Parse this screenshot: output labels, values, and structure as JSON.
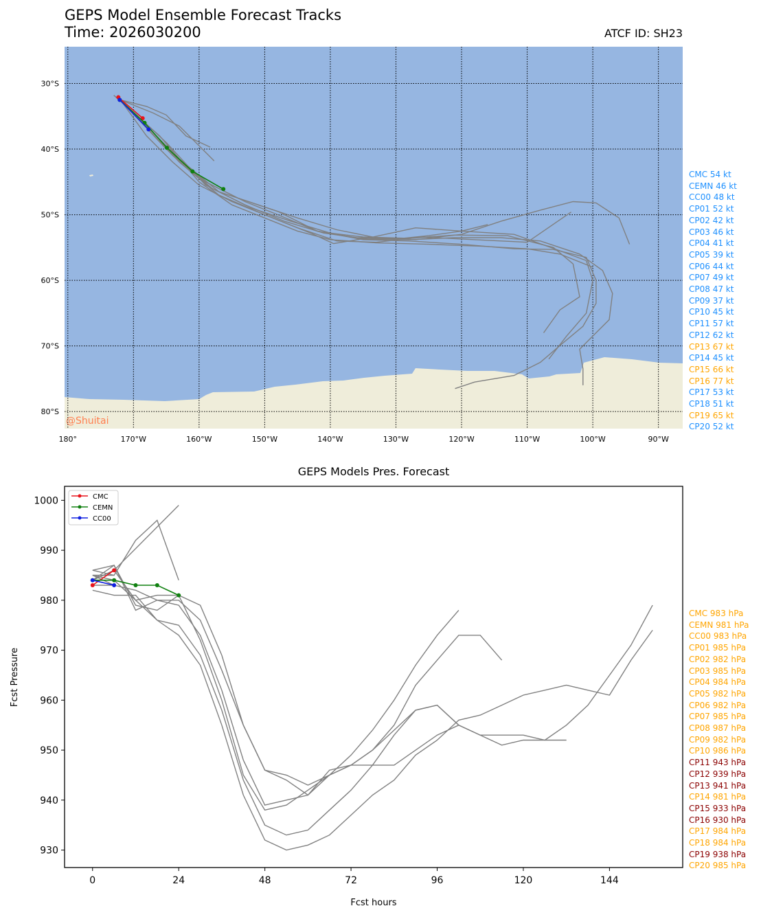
{
  "header": {
    "title": "GEPS Model Ensemble Forecast Tracks",
    "time": "Time: 2026030200",
    "atcf": "ATCF ID: SH23"
  },
  "colors": {
    "ocean": "#96b6e1",
    "land": "#efedda",
    "track_gray": "#808080",
    "cmc": "#e8141c",
    "cemn": "#108010",
    "cc00": "#1020e0",
    "wind_blue": "#1e90ff",
    "wind_orange": "#ffa500",
    "pres_orange": "#ffa500",
    "pres_darkred": "#8b0000",
    "watermark": "#ff7f50"
  },
  "watermark": "@Shuitai",
  "chart_data": [
    {
      "type": "line",
      "subtype": "map-tracks",
      "title": "GEPS Model Ensemble Forecast Tracks",
      "x_ticks": [
        "180°",
        "170°W",
        "160°W",
        "150°W",
        "140°W",
        "130°W",
        "120°W",
        "110°W",
        "100°W",
        "90°W"
      ],
      "x_tick_values": [
        -180,
        -170,
        -160,
        -150,
        -140,
        -130,
        -120,
        -110,
        -100,
        -90
      ],
      "y_ticks": [
        "30°S",
        "40°S",
        "50°S",
        "60°S",
        "70°S",
        "80°S"
      ],
      "y_tick_values": [
        -30,
        -40,
        -50,
        -60,
        -70,
        -80
      ],
      "xlim": [
        -180.5,
        -86.3
      ],
      "ylim": [
        -82.6,
        -24.4
      ],
      "grid": true,
      "series": [
        {
          "name": "CMC",
          "color": "cmc",
          "markers": true,
          "lon": [
            -172.3,
            -168.6
          ],
          "lat": [
            -32.1,
            -35.3
          ]
        },
        {
          "name": "CEMN",
          "color": "cemn",
          "markers": true,
          "lon": [
            -172.1,
            -168.3,
            -164.9,
            -161.0,
            -156.3
          ],
          "lat": [
            -32.5,
            -36.0,
            -39.8,
            -43.4,
            -46.1
          ]
        },
        {
          "name": "CC00",
          "color": "cc00",
          "markers": true,
          "lon": [
            -172.1,
            -167.7
          ],
          "lat": [
            -32.5,
            -37.0
          ]
        },
        {
          "color": "track_gray",
          "lon": [
            -173,
            -166,
            -160,
            -155,
            -150,
            -145,
            -140,
            -133,
            -125,
            -117,
            -110,
            -105,
            -100
          ],
          "lat": [
            -31.8,
            -38,
            -45,
            -48.5,
            -50.5,
            -52.5,
            -53.8,
            -54.3,
            -54.5,
            -54.8,
            -55.2,
            -56,
            -58
          ]
        },
        {
          "color": "track_gray",
          "lon": [
            -172,
            -165,
            -159,
            -153,
            -147,
            -141,
            -136,
            -130,
            -125,
            -120,
            -116
          ],
          "lat": [
            -32.5,
            -39,
            -45.5,
            -48.5,
            -51,
            -52.8,
            -53.5,
            -53.7,
            -53.2,
            -52.5,
            -51.5
          ]
        },
        {
          "color": "track_gray",
          "lon": [
            -172,
            -164,
            -158,
            -152,
            -146,
            -140,
            -135,
            -128,
            -121,
            -113,
            -106,
            -103,
            -102,
            -105,
            -107.5
          ],
          "lat": [
            -32.5,
            -41,
            -46,
            -49,
            -51,
            -52.8,
            -53.4,
            -53.6,
            -53.1,
            -53.2,
            -55,
            -57.5,
            -62.5,
            -64.5,
            -68
          ]
        },
        {
          "color": "track_gray",
          "lon": [
            -172,
            -163,
            -157,
            -150,
            -143,
            -139.5,
            -134,
            -127,
            -120,
            -112,
            -105,
            -101,
            -100,
            -101,
            -104,
            -106.7
          ],
          "lat": [
            -32.5,
            -42,
            -47,
            -50,
            -52.8,
            -54.4,
            -53.5,
            -52,
            -52.5,
            -53,
            -55.5,
            -57,
            -60,
            -65,
            -68.5,
            -72
          ]
        },
        {
          "color": "track_gray",
          "lon": [
            -172,
            -165,
            -159,
            -153,
            -148,
            -142,
            -135,
            -128,
            -120,
            -112,
            -106,
            -101,
            -99.5,
            -99.5,
            -101.5,
            -104.5,
            -108,
            -112,
            -118,
            -121
          ],
          "lat": [
            -32.5,
            -40,
            -45,
            -48,
            -50,
            -52.5,
            -53.8,
            -54,
            -54.5,
            -55.2,
            -55.3,
            -56.5,
            -60,
            -63.5,
            -67,
            -69.5,
            -72.5,
            -74.5,
            -75.5,
            -76.5
          ]
        },
        {
          "color": "track_gray",
          "lon": [
            -172,
            -165,
            -160,
            -154,
            -148,
            -142,
            -135,
            -128,
            -121,
            -114,
            -108,
            -102,
            -98.5,
            -97,
            -97.5,
            -100,
            -102,
            -101.5,
            -101.5
          ],
          "lat": [
            -32.5,
            -40,
            -44.5,
            -47.5,
            -49.5,
            -52.5,
            -53.7,
            -53.8,
            -53.5,
            -53.5,
            -54,
            -56,
            -58.5,
            -62,
            -66,
            -68.5,
            -70.5,
            -73.5,
            -76
          ]
        },
        {
          "color": "track_gray",
          "lon": [
            -172,
            -163,
            -157,
            -151,
            -145,
            -139,
            -133,
            -127,
            -120,
            -114,
            -108,
            -103,
            -99.5,
            -96,
            -94.4
          ],
          "lat": [
            -32.5,
            -41.5,
            -46.5,
            -48.5,
            -50.5,
            -52.3,
            -53.5,
            -53.8,
            -53.0,
            -51,
            -49.3,
            -48.0,
            -48.2,
            -50.5,
            -54.5
          ]
        },
        {
          "color": "track_gray",
          "lon": [
            -172,
            -167,
            -163,
            -160,
            -157.7
          ],
          "lat": [
            -32.5,
            -34.5,
            -36.5,
            -39.5,
            -41.8
          ]
        },
        {
          "color": "track_gray",
          "lon": [
            -172,
            -168,
            -165,
            -162,
            -158.3
          ],
          "lat": [
            -32.5,
            -33.5,
            -34.8,
            -38,
            -39.7
          ]
        },
        {
          "color": "track_gray",
          "lon": [
            -172,
            -168,
            -164,
            -160,
            -155,
            -150,
            -145,
            -139,
            -133,
            -126,
            -118,
            -110,
            -103.3
          ],
          "lat": [
            -32.5,
            -38,
            -42,
            -45.5,
            -48,
            -50,
            -52,
            -54,
            -54.2,
            -53.4,
            -53.8,
            -54.2,
            -49.6
          ]
        }
      ],
      "wind_labels": [
        {
          "text": "CMC 54 kt",
          "color": "wind_blue"
        },
        {
          "text": "CEMN 46 kt",
          "color": "wind_blue"
        },
        {
          "text": "CC00 48 kt",
          "color": "wind_blue"
        },
        {
          "text": "CP01 52 kt",
          "color": "wind_blue"
        },
        {
          "text": "CP02 42 kt",
          "color": "wind_blue"
        },
        {
          "text": "CP03 46 kt",
          "color": "wind_blue"
        },
        {
          "text": "CP04 41 kt",
          "color": "wind_blue"
        },
        {
          "text": "CP05 39 kt",
          "color": "wind_blue"
        },
        {
          "text": "CP06 44 kt",
          "color": "wind_blue"
        },
        {
          "text": "CP07 49 kt",
          "color": "wind_blue"
        },
        {
          "text": "CP08 47 kt",
          "color": "wind_blue"
        },
        {
          "text": "CP09 37 kt",
          "color": "wind_blue"
        },
        {
          "text": "CP10 45 kt",
          "color": "wind_blue"
        },
        {
          "text": "CP11 57 kt",
          "color": "wind_blue"
        },
        {
          "text": "CP12 62 kt",
          "color": "wind_blue"
        },
        {
          "text": "CP13 67 kt",
          "color": "wind_orange"
        },
        {
          "text": "CP14 45 kt",
          "color": "wind_blue"
        },
        {
          "text": "CP15 66 kt",
          "color": "wind_orange"
        },
        {
          "text": "CP16 77 kt",
          "color": "wind_orange"
        },
        {
          "text": "CP17 53 kt",
          "color": "wind_blue"
        },
        {
          "text": "CP18 51 kt",
          "color": "wind_blue"
        },
        {
          "text": "CP19 65 kt",
          "color": "wind_orange"
        },
        {
          "text": "CP20 52 kt",
          "color": "wind_blue"
        }
      ]
    },
    {
      "type": "line",
      "title": "GEPS Models Pres. Forecast",
      "xlabel": "Fcst hours",
      "ylabel": "Fcst Pressure",
      "x_ticks": [
        0,
        24,
        48,
        72,
        96,
        120,
        144
      ],
      "y_ticks": [
        930,
        940,
        950,
        960,
        970,
        980,
        990,
        1000
      ],
      "xlim": [
        -7.8,
        164.4
      ],
      "ylim": [
        926.5,
        1002.8
      ],
      "grid": false,
      "legend": {
        "placement": "top-left",
        "entries": [
          "CMC",
          "CEMN",
          "CC00"
        ]
      },
      "series": [
        {
          "name": "CMC",
          "color": "cmc",
          "markers": true,
          "x": [
            0,
            6
          ],
          "y": [
            983,
            986
          ]
        },
        {
          "name": "CEMN",
          "color": "cemn",
          "markers": true,
          "x": [
            0,
            6,
            12,
            18,
            24
          ],
          "y": [
            984,
            984,
            983,
            983,
            981
          ]
        },
        {
          "name": "CC00",
          "color": "cc00",
          "markers": true,
          "x": [
            0,
            6
          ],
          "y": [
            984,
            983
          ]
        },
        {
          "color": "track_gray",
          "x": [
            0,
            6,
            12,
            18,
            24
          ],
          "y": [
            985,
            985,
            992,
            996,
            984
          ]
        },
        {
          "color": "track_gray",
          "x": [
            0,
            6,
            24
          ],
          "y": [
            984,
            986,
            999
          ]
        },
        {
          "color": "track_gray",
          "x": [
            0,
            6
          ],
          "y": [
            986,
            985
          ]
        },
        {
          "color": "track_gray",
          "x": [
            0,
            6
          ],
          "y": [
            983,
            983
          ]
        },
        {
          "color": "track_gray",
          "x": [
            0,
            6,
            12,
            18,
            24,
            30,
            36,
            42,
            48,
            54,
            60,
            66,
            72,
            78,
            84,
            90,
            96,
            102
          ],
          "y": [
            985,
            983,
            982,
            980,
            980,
            976,
            966,
            955,
            946,
            944,
            941,
            945,
            949,
            954,
            960,
            967,
            973,
            978
          ]
        },
        {
          "color": "track_gray",
          "x": [
            0,
            6,
            12,
            18,
            24,
            30,
            36,
            42,
            48,
            54,
            60,
            66,
            72,
            78,
            84,
            90,
            96,
            102,
            108,
            114
          ],
          "y": [
            984,
            986,
            980,
            981,
            981,
            979,
            969,
            955,
            946,
            945,
            943,
            945,
            947,
            950,
            955,
            963,
            968,
            973,
            973,
            968
          ]
        },
        {
          "color": "track_gray",
          "x": [
            0,
            6,
            12,
            18,
            24,
            30,
            36,
            42,
            48,
            54,
            60,
            66,
            72,
            78,
            84,
            90,
            96,
            102,
            108,
            114,
            120,
            126,
            132
          ],
          "y": [
            984,
            987,
            978,
            980,
            979,
            973,
            962,
            948,
            939,
            940,
            941,
            946,
            947,
            947,
            947,
            950,
            953,
            955,
            953,
            953,
            953,
            952,
            952
          ]
        },
        {
          "color": "track_gray",
          "x": [
            0,
            6,
            12,
            18,
            24,
            30,
            36,
            42,
            48,
            54,
            60,
            66,
            72,
            78,
            84,
            90,
            96,
            102,
            108,
            114,
            120,
            126,
            132,
            138,
            144,
            150,
            156
          ],
          "y": [
            985,
            984,
            980,
            976,
            975,
            969,
            958,
            944,
            935,
            933,
            934,
            938,
            942,
            947,
            953,
            958,
            959,
            955,
            953,
            951,
            952,
            952,
            955,
            959,
            965,
            971,
            979
          ]
        },
        {
          "color": "track_gray",
          "x": [
            0,
            6,
            12,
            18,
            24,
            30,
            36,
            42,
            48,
            54,
            60,
            66,
            72,
            78,
            84,
            90,
            96,
            102,
            108,
            114,
            120,
            126,
            132,
            138,
            144,
            150,
            156
          ],
          "y": [
            982,
            981,
            981,
            976,
            973,
            967,
            955,
            941,
            932,
            930,
            931,
            933,
            937,
            941,
            944,
            949,
            952,
            956,
            957,
            959,
            961,
            962,
            963,
            962,
            961,
            968,
            974
          ]
        },
        {
          "color": "track_gray",
          "x": [
            0,
            6,
            12,
            18,
            24,
            30,
            36,
            42,
            48,
            54,
            60,
            66,
            72,
            78,
            84,
            90,
            96,
            102
          ],
          "y": [
            986,
            987,
            979,
            978,
            981,
            972,
            960,
            945,
            938,
            939,
            942,
            945,
            947,
            950,
            954,
            958,
            959,
            955
          ]
        }
      ],
      "pres_labels": [
        {
          "text": "CMC 983 hPa",
          "color": "pres_orange"
        },
        {
          "text": "CEMN 981 hPa",
          "color": "pres_orange"
        },
        {
          "text": "CC00 983 hPa",
          "color": "pres_orange"
        },
        {
          "text": "CP01 985 hPa",
          "color": "pres_orange"
        },
        {
          "text": "CP02 982 hPa",
          "color": "pres_orange"
        },
        {
          "text": "CP03 985 hPa",
          "color": "pres_orange"
        },
        {
          "text": "CP04 984 hPa",
          "color": "pres_orange"
        },
        {
          "text": "CP05 982 hPa",
          "color": "pres_orange"
        },
        {
          "text": "CP06 982 hPa",
          "color": "pres_orange"
        },
        {
          "text": "CP07 985 hPa",
          "color": "pres_orange"
        },
        {
          "text": "CP08 987 hPa",
          "color": "pres_orange"
        },
        {
          "text": "CP09 982 hPa",
          "color": "pres_orange"
        },
        {
          "text": "CP10 986 hPa",
          "color": "pres_orange"
        },
        {
          "text": "CP11 943 hPa",
          "color": "pres_darkred"
        },
        {
          "text": "CP12 939 hPa",
          "color": "pres_darkred"
        },
        {
          "text": "CP13 941 hPa",
          "color": "pres_darkred"
        },
        {
          "text": "CP14 981 hPa",
          "color": "pres_orange"
        },
        {
          "text": "CP15 933 hPa",
          "color": "pres_darkred"
        },
        {
          "text": "CP16 930 hPa",
          "color": "pres_darkred"
        },
        {
          "text": "CP17 984 hPa",
          "color": "pres_orange"
        },
        {
          "text": "CP18 984 hPa",
          "color": "pres_orange"
        },
        {
          "text": "CP19 938 hPa",
          "color": "pres_darkred"
        },
        {
          "text": "CP20 985 hPa",
          "color": "pres_orange"
        }
      ]
    }
  ]
}
